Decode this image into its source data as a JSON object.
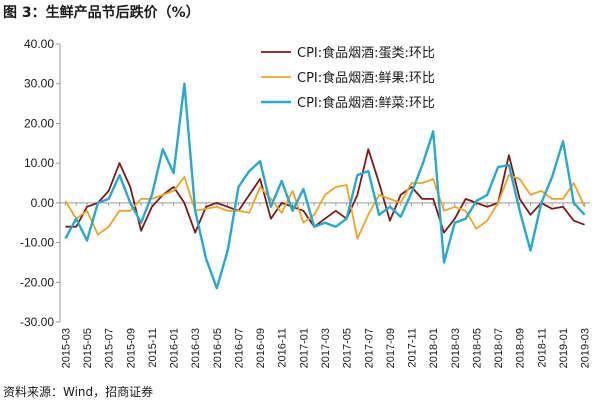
{
  "figure": {
    "title": "图 3：生鲜产品节后跌价（%）",
    "source": "资料来源：Wind，招商证券"
  },
  "chart_data": {
    "type": "line",
    "ylim": [
      -30,
      40
    ],
    "y_ticks": [
      "40.00",
      "30.00",
      "20.00",
      "10.00",
      "0.00",
      "-10.00",
      "-20.00",
      "-30.00"
    ],
    "y_tick_values": [
      40,
      30,
      20,
      10,
      0,
      -10,
      -20,
      -30
    ],
    "x": [
      "2015-03",
      "2015-04",
      "2015-05",
      "2015-06",
      "2015-07",
      "2015-08",
      "2015-09",
      "2015-10",
      "2015-11",
      "2015-12",
      "2016-01",
      "2016-02",
      "2016-03",
      "2016-04",
      "2016-05",
      "2016-06",
      "2016-07",
      "2016-08",
      "2016-09",
      "2016-10",
      "2016-11",
      "2016-12",
      "2017-01",
      "2017-02",
      "2017-03",
      "2017-04",
      "2017-05",
      "2017-06",
      "2017-07",
      "2017-08",
      "2017-09",
      "2017-10",
      "2017-11",
      "2017-12",
      "2018-01",
      "2018-02",
      "2018-03",
      "2018-04",
      "2018-05",
      "2018-06",
      "2018-07",
      "2018-08",
      "2018-09",
      "2018-10",
      "2018-11",
      "2018-12",
      "2019-01",
      "2019-02",
      "2019-03"
    ],
    "x_tick_labels": [
      "2015-03",
      "2015-05",
      "2015-07",
      "2015-09",
      "2015-11",
      "2016-01",
      "2016-03",
      "2016-05",
      "2016-07",
      "2016-09",
      "2016-11",
      "2017-01",
      "2017-03",
      "2017-05",
      "2017-07",
      "2017-09",
      "2017-11",
      "2018-01",
      "2018-03",
      "2018-05",
      "2018-07",
      "2018-09",
      "2018-11",
      "2019-01",
      "2019-03"
    ],
    "grid": false,
    "legend_position": "top-right",
    "series": [
      {
        "name": "CPI:食品烟酒:蛋类:环比",
        "color": "#7b1a1a",
        "values": [
          -6,
          -6,
          -1,
          0,
          3,
          10,
          4,
          -7,
          -1,
          2,
          4,
          0,
          -7.5,
          -1,
          0,
          -1,
          -2,
          2,
          6,
          -4,
          0,
          -1,
          -2,
          -6,
          -4,
          -2,
          -4,
          2,
          13.5,
          5,
          -4.5,
          2,
          4,
          1,
          1,
          -7.5,
          -4,
          1,
          0,
          -1,
          0,
          12,
          1,
          -3,
          0,
          -1.5,
          -1,
          -4.5,
          -5.5
        ]
      },
      {
        "name": "CPI:食品烟酒:鲜果:环比",
        "color": "#e8a52a",
        "values": [
          0.5,
          -4,
          -2,
          -8,
          -6,
          -2,
          -2,
          1,
          1,
          2,
          3,
          6.5,
          -2,
          -1.5,
          -1,
          -2,
          -2,
          -2.5,
          4,
          1,
          -2.5,
          3,
          -5,
          -3,
          2,
          4,
          4.5,
          -9,
          -3,
          2,
          1,
          0,
          5,
          5,
          6,
          -2,
          -1,
          -2,
          -6.5,
          -4.5,
          0,
          7,
          6,
          2,
          3,
          1,
          1,
          5,
          -1
        ]
      },
      {
        "name": "CPI:食品烟酒:鲜菜:环比",
        "color": "#2aa8cc",
        "values": [
          -9,
          -4,
          -9.5,
          0,
          1,
          7,
          0,
          -5,
          2,
          13.5,
          7.5,
          30,
          -2,
          -14,
          -21.5,
          -12,
          4,
          8,
          10.5,
          -1,
          5.5,
          -2,
          3.5,
          -6,
          -5,
          -6,
          -4,
          7,
          8,
          -3,
          -1,
          -3.5,
          2.5,
          9.5,
          18,
          -15,
          -5,
          -4,
          0.5,
          2,
          9,
          9.5,
          -2,
          -12,
          0,
          6.5,
          15.5,
          0,
          -3
        ]
      }
    ]
  }
}
